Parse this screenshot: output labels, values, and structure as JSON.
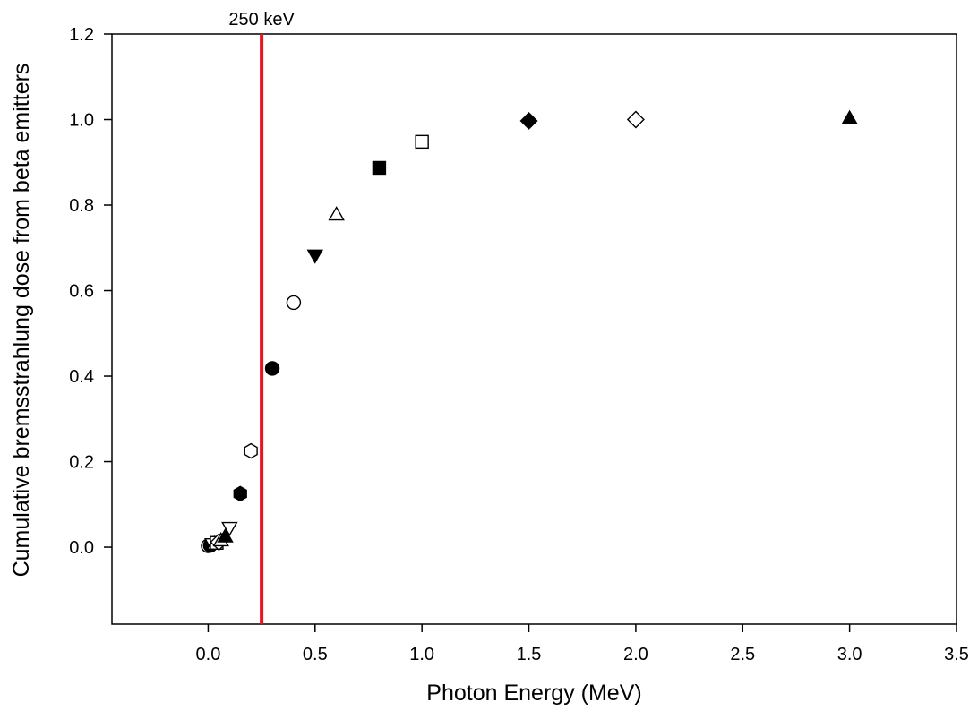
{
  "chart_data": {
    "type": "scatter",
    "title": "",
    "xlabel": "Photon Energy (MeV)",
    "ylabel": "Cumulative bremsstrahlung dose from beta emitters",
    "xlim": [
      -0.45,
      3.5
    ],
    "ylim": [
      -0.18,
      1.2
    ],
    "xticks": [
      "0.0",
      "0.5",
      "1.0",
      "1.5",
      "2.0",
      "2.5",
      "3.0",
      "3.5"
    ],
    "yticks": [
      "0.0",
      "0.2",
      "0.4",
      "0.6",
      "0.8",
      "1.0",
      "1.2"
    ],
    "grid": false,
    "legend": "none",
    "reference_line": {
      "x": 0.25,
      "label": "250 keV",
      "color": "#e8141e"
    },
    "points": [
      {
        "x": 0.0,
        "y": 0.003,
        "marker": "circle",
        "filled": false
      },
      {
        "x": 0.01,
        "y": 0.004,
        "marker": "circle",
        "filled": true
      },
      {
        "x": 0.02,
        "y": 0.007,
        "marker": "triangle-down",
        "filled": false
      },
      {
        "x": 0.03,
        "y": 0.008,
        "marker": "triangle-up",
        "filled": false
      },
      {
        "x": 0.04,
        "y": 0.01,
        "marker": "square",
        "filled": false
      },
      {
        "x": 0.05,
        "y": 0.012,
        "marker": "diamond",
        "filled": false
      },
      {
        "x": 0.06,
        "y": 0.016,
        "marker": "triangle-up",
        "filled": false
      },
      {
        "x": 0.08,
        "y": 0.025,
        "marker": "triangle-up",
        "filled": true
      },
      {
        "x": 0.1,
        "y": 0.045,
        "marker": "triangle-down",
        "filled": false
      },
      {
        "x": 0.15,
        "y": 0.125,
        "marker": "hexagon",
        "filled": true
      },
      {
        "x": 0.2,
        "y": 0.225,
        "marker": "hexagon",
        "filled": false
      },
      {
        "x": 0.3,
        "y": 0.418,
        "marker": "circle",
        "filled": true
      },
      {
        "x": 0.4,
        "y": 0.572,
        "marker": "circle",
        "filled": false
      },
      {
        "x": 0.5,
        "y": 0.682,
        "marker": "triangle-down",
        "filled": true
      },
      {
        "x": 0.6,
        "y": 0.778,
        "marker": "triangle-up",
        "filled": false
      },
      {
        "x": 0.8,
        "y": 0.887,
        "marker": "square",
        "filled": true
      },
      {
        "x": 1.0,
        "y": 0.948,
        "marker": "square",
        "filled": false
      },
      {
        "x": 1.5,
        "y": 0.997,
        "marker": "diamond",
        "filled": true
      },
      {
        "x": 2.0,
        "y": 1.0,
        "marker": "diamond",
        "filled": false
      },
      {
        "x": 3.0,
        "y": 1.003,
        "marker": "triangle-up",
        "filled": true
      }
    ]
  }
}
